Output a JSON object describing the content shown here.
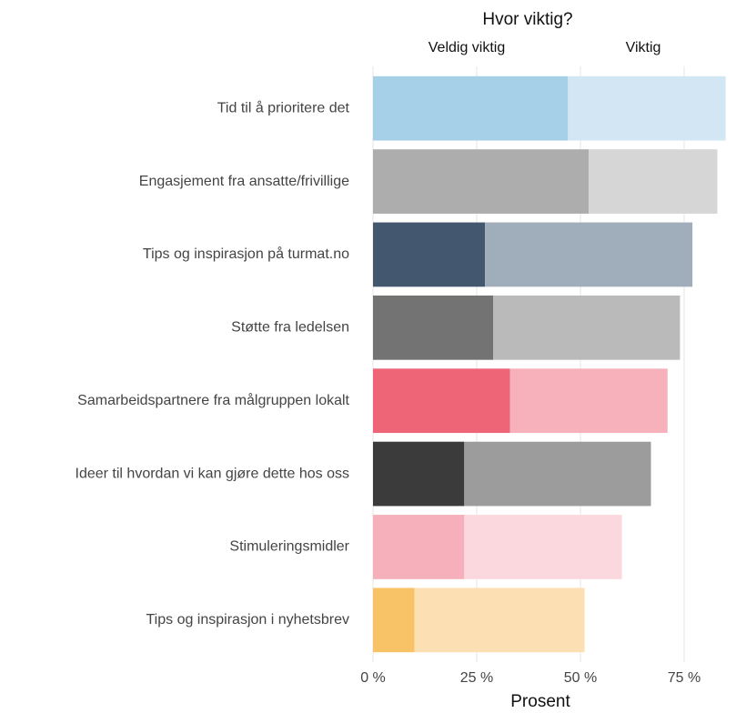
{
  "chart_data": {
    "type": "stacked_barh",
    "legend_title": "Hvor viktig?",
    "legend_position": "top",
    "xlabel": "Prosent",
    "categories": [
      "Tid til å prioritere det",
      "Engasjement fra ansatte/frivillige",
      "Tips og inspirasjon på turmat.no",
      "Støtte fra ledelsen",
      "Samarbeidspartnere fra målgruppen lokalt",
      "Ideer til hvordan vi kan gjøre dette hos oss",
      "Stimuleringsmidler",
      "Tips og inspirasjon i nyhetsbrev"
    ],
    "series": [
      {
        "name": "Veldig viktig",
        "values": [
          47,
          52,
          27,
          29,
          33,
          22,
          22,
          10
        ],
        "colors": [
          "#a6d0e8",
          "#adadad",
          "#43586f",
          "#737373",
          "#ee6577",
          "#3b3b3b",
          "#f6b0bc",
          "#f8c266"
        ]
      },
      {
        "name": "Viktig",
        "values": [
          38,
          31,
          50,
          45,
          38,
          45,
          38,
          41
        ],
        "colors": [
          "#d2e7f3",
          "#d6d6d6",
          "#a0adbb",
          "#bababa",
          "#f6b1bb",
          "#9c9c9c",
          "#fbd8de",
          "#fce0b3"
        ]
      }
    ],
    "xlim": [
      0,
      87.5
    ],
    "xticks": [
      {
        "value": 0,
        "label": "0 %"
      },
      {
        "value": 25,
        "label": "25 %"
      },
      {
        "value": 50,
        "label": "50 %"
      },
      {
        "value": 75,
        "label": "75 %"
      }
    ],
    "grid": true
  }
}
